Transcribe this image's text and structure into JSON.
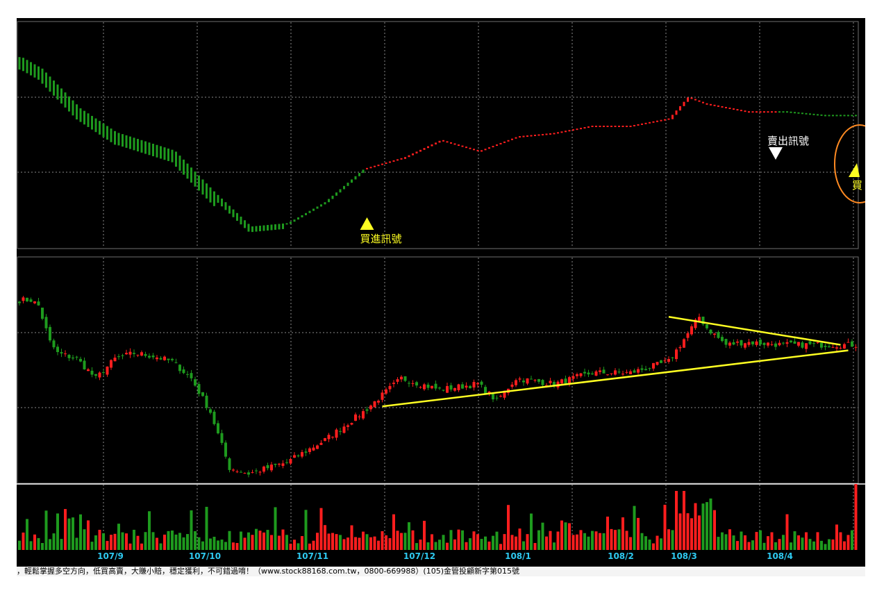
{
  "colors": {
    "background": "#000000",
    "up": "#ff1e1e",
    "down": "#1e9a1e",
    "grid": "#8c8c8c",
    "trendline": "#ffff22",
    "buy_signal": "#ffff22",
    "sell_signal": "#ffffff",
    "highlight_circle": "#ff8a22",
    "month_label": "#2ec9f0"
  },
  "signals": {
    "buy_label": "買進訊號",
    "sell_label": "賣出訊號",
    "edge_label": "買"
  },
  "footer_text": "，輕鬆掌握多空方向，低買高賣，大賺小賠，穩定獲利，不可錯過唷！（www.stock88168.com.tw，0800-669988）(105)金管投顧新字第015號",
  "chart_data": {
    "type": "candlestick",
    "panels": [
      "indicator",
      "price",
      "volume"
    ],
    "x_tick_labels": [
      "107/9",
      "107/10",
      "107/11",
      "107/12",
      "108/1",
      "108/2",
      "108/3",
      "108/4"
    ],
    "price_keypoints": {
      "x_index": [
        0,
        3,
        5,
        8,
        10,
        15,
        20,
        25,
        30,
        35,
        40,
        45,
        50,
        55,
        60,
        70,
        80,
        90,
        100,
        110,
        120,
        125,
        130,
        140,
        150,
        160,
        170,
        175,
        178,
        180,
        185,
        190,
        200,
        210,
        219
      ],
      "close": [
        98,
        98,
        96,
        83,
        79,
        77,
        70,
        77,
        79,
        78,
        76,
        70,
        58,
        38,
        36,
        40,
        48,
        58,
        70,
        66,
        68,
        62,
        70,
        68,
        72,
        72,
        76,
        86,
        92,
        88,
        82,
        83,
        82,
        82,
        82
      ]
    },
    "indicator_keypoints": {
      "x_index": [
        0,
        5,
        15,
        25,
        40,
        50,
        60,
        70,
        80,
        90,
        100,
        110,
        120,
        130,
        140,
        150,
        160,
        170,
        175,
        180,
        190,
        200,
        210,
        219
      ],
      "value": [
        99,
        96,
        85,
        78,
        73,
        62,
        52,
        53,
        59,
        68,
        71,
        76,
        73,
        77,
        78,
        80,
        80,
        82,
        88,
        86,
        84,
        84,
        83,
        83
      ]
    },
    "signal_bars": {
      "buy_index": 91,
      "sell_index": 198
    },
    "trendlines": [
      {
        "name": "support",
        "from": [
          95,
          60
        ],
        "to": [
          217,
          80
        ]
      },
      {
        "name": "resistance",
        "from": [
          170,
          92
        ],
        "to": [
          215,
          82
        ]
      }
    ]
  }
}
